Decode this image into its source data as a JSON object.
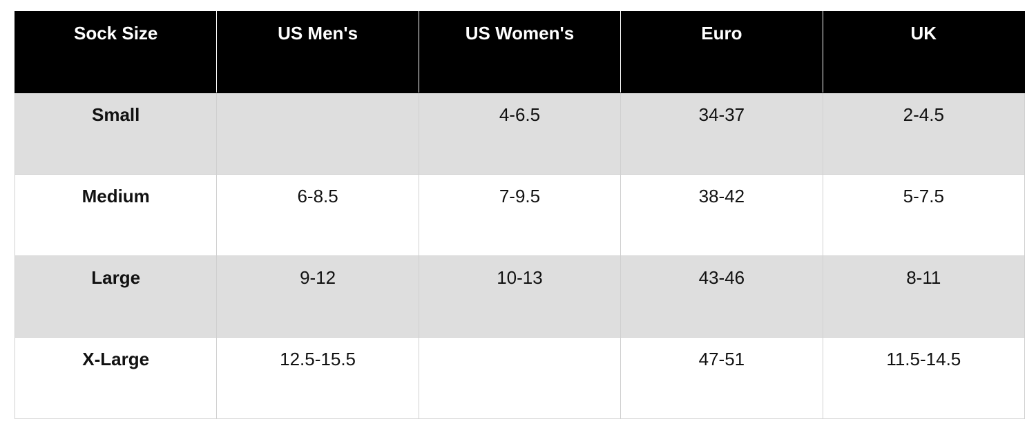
{
  "table": {
    "header": [
      "Sock Size",
      "US Men's",
      "US Women's",
      "Euro",
      "UK"
    ],
    "rows": [
      [
        "Small",
        null,
        "4-6.5",
        "34-37",
        "2-4.5"
      ],
      [
        "Medium",
        "6-8.5",
        "7-9.5",
        "38-42",
        "5-7.5"
      ],
      [
        "Large",
        "9-12",
        "10-13",
        "43-46",
        "8-11"
      ],
      [
        "X-Large",
        "12.5-15.5",
        null,
        "47-51",
        "11.5-14.5"
      ]
    ]
  }
}
